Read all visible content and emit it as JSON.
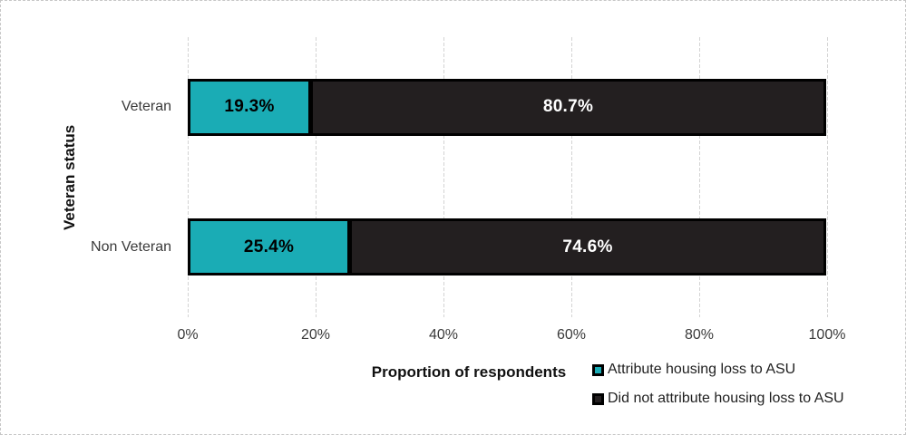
{
  "figure": {
    "background": "#ffffff",
    "border_color": "#c6c6c6"
  },
  "chart_data": {
    "type": "bar",
    "orientation": "horizontal",
    "stacked": true,
    "percent_stacked": true,
    "title": "",
    "xlabel": "Proportion of respondents",
    "ylabel": "Veteran status",
    "categories": [
      "Veteran",
      "Non Veteran"
    ],
    "series": [
      {
        "name": "Attribute housing loss to ASU",
        "color": "#1AACB5",
        "label_color": "#000000",
        "values": [
          19.3,
          25.4
        ],
        "data_labels": [
          "19.3%",
          "25.4%"
        ]
      },
      {
        "name": "Did not attribute housing loss to ASU",
        "color": "#231F20",
        "label_color": "#FFFFFF",
        "values": [
          80.7,
          74.6
        ],
        "data_labels": [
          "80.7%",
          "74.6%"
        ]
      }
    ],
    "x_ticks": [
      "0%",
      "20%",
      "40%",
      "60%",
      "80%",
      "100%"
    ],
    "xlim": [
      0,
      100
    ],
    "grid": true,
    "gridline_color": "#D4D4D4",
    "legend_position": "bottom-right"
  }
}
